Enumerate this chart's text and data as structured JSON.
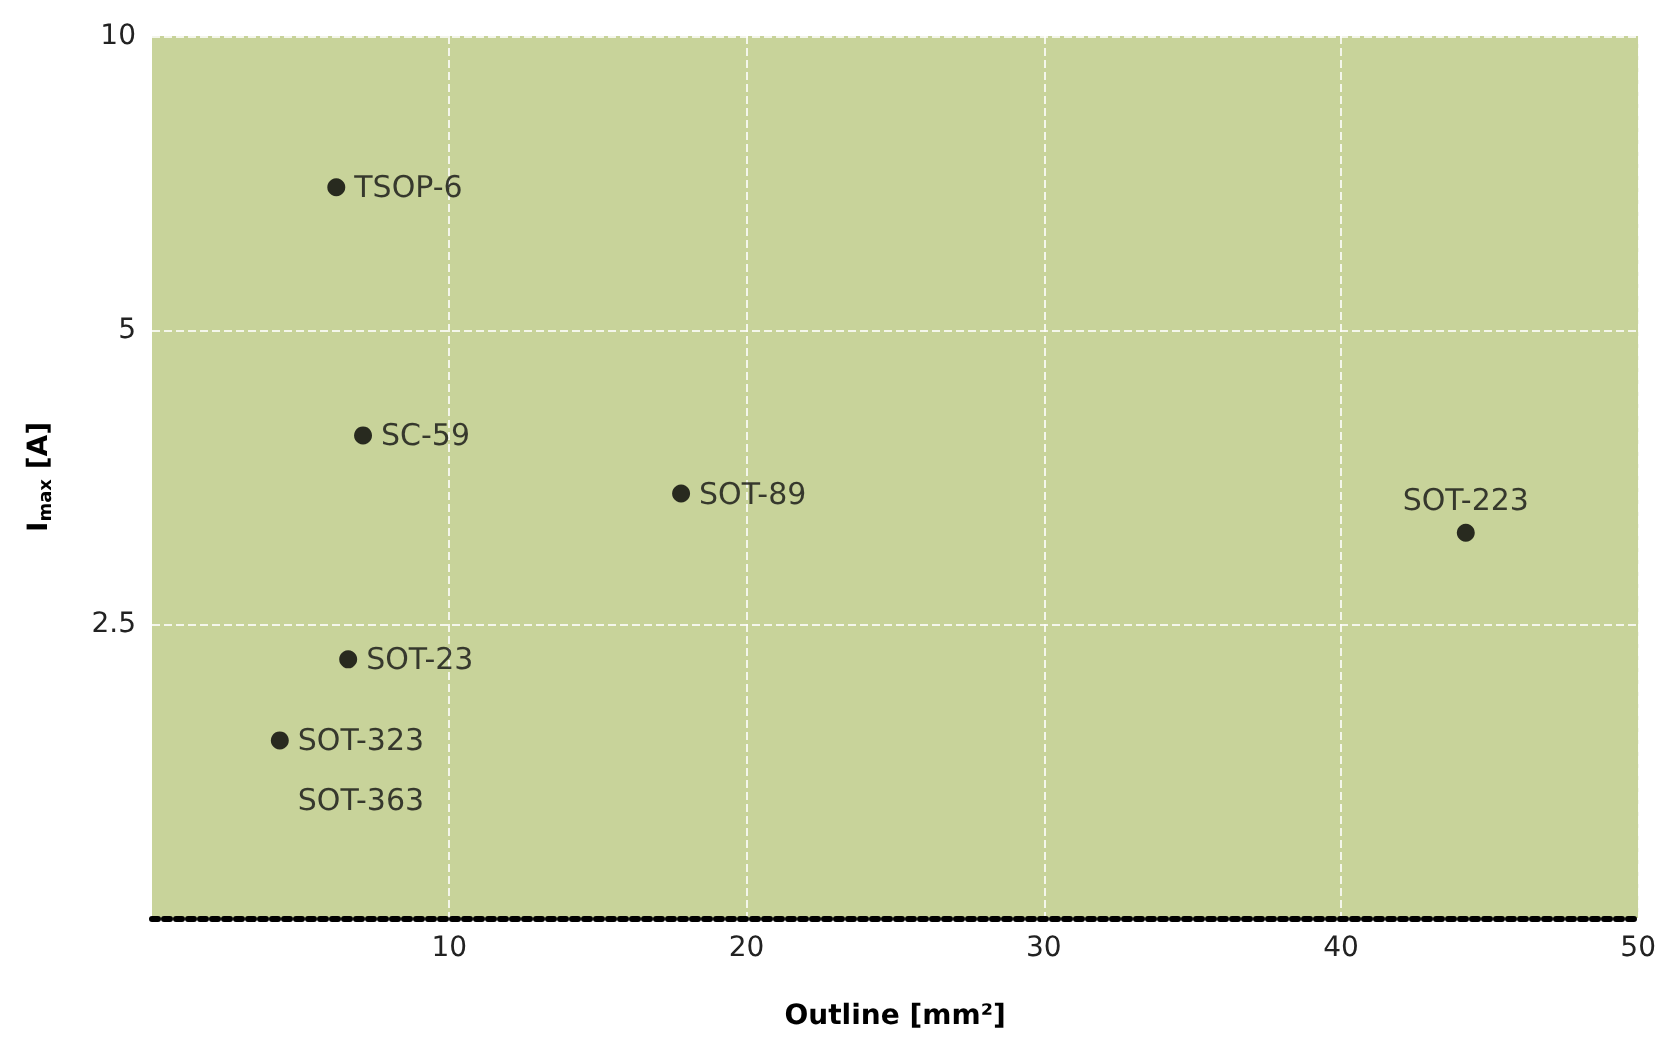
{
  "chart_data": {
    "type": "scatter",
    "xlabel": "Outline [mm²]",
    "ylabel": "I$_{max}$ [A]",
    "x": [
      6.2,
      7.1,
      17.8,
      44.2,
      6.6,
      4.3
    ],
    "series": [
      {
        "color": "#000000",
        "values": [
          7.0,
          3.9,
          3.4,
          3.1,
          2.3,
          1.9
        ]
      }
    ],
    "annotations": [
      {
        "text": "TSOP-6",
        "x": 6.2,
        "y": 7.0
      },
      {
        "text": "SC-59",
        "x": 7.1,
        "y": 3.9
      },
      {
        "text": "SOT-89",
        "x": 17.8,
        "y": 3.4
      },
      {
        "text": "SOT-223",
        "x": 44.2,
        "y": 3.1
      },
      {
        "text": "SOT-23",
        "x": 6.6,
        "y": 2.3
      },
      {
        "text": "SOT-323",
        "x": 4.3,
        "y": 1.9
      },
      {
        "text": "SOT-363",
        "x": 4.3,
        "y": 1.9
      }
    ],
    "xlim": [
      0,
      50
    ],
    "xticks": [
      10,
      20,
      30,
      40,
      50
    ],
    "ylim": [
      1.25,
      10
    ],
    "yticks": [
      2.5,
      5,
      10
    ],
    "log": "y",
    "grid": true,
    "marker": "circle"
  }
}
